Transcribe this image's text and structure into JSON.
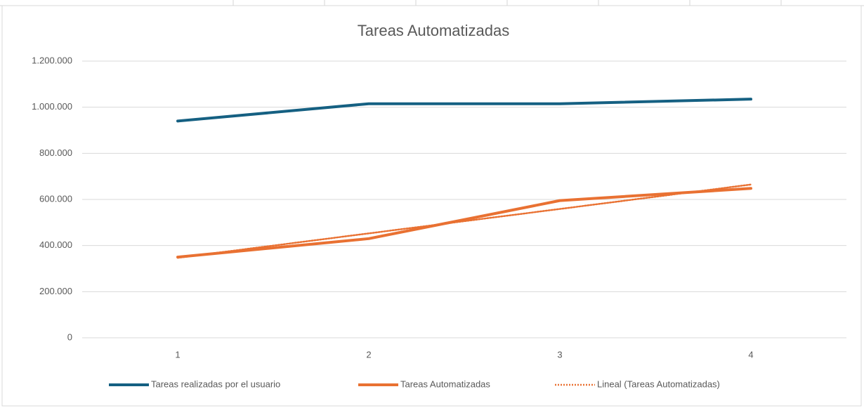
{
  "chart_data": {
    "type": "line",
    "title": "Tareas Automatizadas",
    "categories": [
      "1",
      "2",
      "3",
      "4"
    ],
    "series": [
      {
        "name": "Tareas realizadas por el usuario",
        "color": "#156082",
        "style": "solid",
        "values": [
          940000,
          1015000,
          1015000,
          1035000
        ]
      },
      {
        "name": "Tareas Automatizadas",
        "color": "#e97132",
        "style": "solid",
        "values": [
          350000,
          430000,
          595000,
          648000
        ]
      },
      {
        "name": "Lineal (Tareas Automatizadas)",
        "color": "#e97132",
        "style": "dotted",
        "values": [
          346900,
          452800,
          558700,
          664600
        ]
      }
    ],
    "ylim": [
      0,
      1200000
    ],
    "yticks": [
      0,
      {
        "value": 200000,
        "label": "200.000"
      },
      {
        "value": 400000,
        "label": "400.000"
      },
      {
        "value": 600000,
        "label": "600.000"
      },
      {
        "value": 800000,
        "label": "800.000"
      },
      {
        "value": 1000000,
        "label": "1.000.000"
      },
      {
        "value": 1200000,
        "label": "1.200.000"
      }
    ],
    "grid": true,
    "legend": "bottom"
  }
}
